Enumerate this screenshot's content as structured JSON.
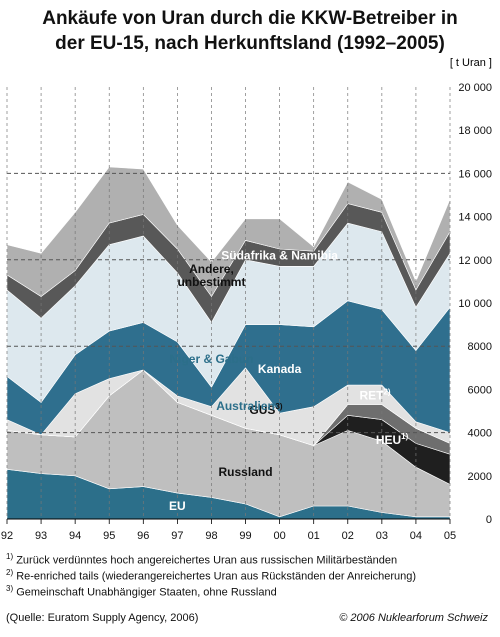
{
  "title_line1": "Ankäufe von Uran durch die KKW-Betreiber in",
  "title_line2": "der EU-15, nach Herkunftsland (1992–2005)",
  "footnotes": [
    "Zurück verdünntes hoch angereichertes Uran aus russischen Militärbeständen",
    "Re-enriched tails (wiederangereichertes Uran aus Rückständen der Anreicherung)",
    "Gemeinschaft Unabhängiger Staaten, ohne Russland"
  ],
  "footnote_marks": [
    "1)",
    "2)",
    "3)"
  ],
  "source": "(Quelle: Euratom Supply Agency, 2006)",
  "copyright": "© 2006 Nuklearforum Schweiz",
  "chart_data": {
    "type": "area",
    "stacked": true,
    "x": [
      "92",
      "93",
      "94",
      "95",
      "96",
      "97",
      "98",
      "99",
      "00",
      "01",
      "02",
      "03",
      "04",
      "05"
    ],
    "unit_label": "[ t Uran ]",
    "ylim": [
      0,
      20000
    ],
    "yticks": [
      "0",
      "2000",
      "4000",
      "6000",
      "8000",
      "10 000",
      "12 000",
      "14 000",
      "16 000",
      "18 000",
      "20 000"
    ],
    "ytick_values": [
      0,
      2000,
      4000,
      6000,
      8000,
      10000,
      12000,
      14000,
      16000,
      18000,
      20000
    ],
    "grid_dashed_at": [
      4000,
      8000,
      12000,
      16000
    ],
    "vertical_grid": "dashed at every year",
    "series": [
      {
        "name": "EU",
        "color": "#2c6f8a",
        "values": [
          2300,
          2100,
          2000,
          1400,
          1500,
          1200,
          1000,
          700,
          100,
          600,
          600,
          300,
          100,
          100
        ]
      },
      {
        "name": "Russland",
        "color": "#bfbfbf",
        "values": [
          1800,
          1800,
          1800,
          4300,
          5400,
          4200,
          3800,
          3500,
          3800,
          2800,
          3500,
          3300,
          2300,
          1500
        ]
      },
      {
        "name": "HEU",
        "note": "1)",
        "color": "#1f1f1f",
        "values": [
          0,
          0,
          0,
          0,
          0,
          0,
          0,
          0,
          0,
          0,
          700,
          1000,
          1100,
          1400
        ]
      },
      {
        "name": "RET",
        "note": "2)",
        "color": "#6e6e6e",
        "values": [
          0,
          0,
          0,
          0,
          0,
          0,
          0,
          0,
          0,
          0,
          500,
          700,
          700,
          500
        ]
      },
      {
        "name": "GUS",
        "note": "3)",
        "color": "#5a5a5a",
        "values": [
          0,
          0,
          0,
          0,
          0,
          0,
          0,
          0,
          0,
          0,
          0,
          0,
          0,
          0
        ]
      },
      {
        "name": "Australien",
        "color": "#e2e2e2",
        "values": [
          500,
          0,
          2000,
          800,
          0,
          300,
          400,
          2800,
          1000,
          1800,
          900,
          900,
          300,
          500
        ]
      },
      {
        "name": "Australien_band",
        "color": "#9dbfcc",
        "values": [
          0,
          0,
          0,
          0,
          0,
          0,
          0,
          0,
          0,
          0,
          0,
          0,
          0,
          0
        ]
      },
      {
        "name": "Kanada",
        "color": "#2f6f8e",
        "values": [
          2000,
          1500,
          1800,
          2200,
          2200,
          2500,
          900,
          2000,
          4100,
          3700,
          3900,
          3500,
          3300,
          5800
        ]
      },
      {
        "name": "Niger & Gabun",
        "color": "#dde8ee",
        "values": [
          4000,
          3900,
          3200,
          4000,
          4000,
          3200,
          3000,
          3000,
          2700,
          2800,
          3600,
          3600,
          2000,
          2500
        ]
      },
      {
        "name": "Südafrika & Namibia",
        "color": "#585858",
        "values": [
          700,
          1000,
          700,
          1000,
          1000,
          1100,
          1200,
          900,
          800,
          700,
          900,
          900,
          800,
          1000
        ]
      },
      {
        "name": "Andere, unbestimmt",
        "color": "#b0b0b0",
        "values": [
          1400,
          2000,
          2700,
          2600,
          2100,
          1100,
          1600,
          1000,
          1400,
          200,
          1000,
          600,
          400,
          1500
        ]
      }
    ],
    "labels": [
      {
        "text": "EU",
        "series": "EU"
      },
      {
        "text": "Russland",
        "series": "Russland"
      },
      {
        "text": "HEU",
        "sup": "1)",
        "series": "HEU"
      },
      {
        "text": "RET",
        "sup": "2)",
        "series": "RET"
      },
      {
        "text": "GUS",
        "sup": "3)",
        "series": "GUS"
      },
      {
        "text": "Australien",
        "series": "Australien"
      },
      {
        "text": "Kanada",
        "series": "Kanada"
      },
      {
        "text": "Niger & Gabun",
        "series": "Niger & Gabun"
      },
      {
        "text": "Südafrika & Namibia",
        "series": "Südafrika & Namibia"
      },
      {
        "text": "Andere,",
        "series": "Andere, unbestimmt"
      },
      {
        "text": "unbestimmt",
        "series": "Andere, unbestimmt"
      }
    ]
  }
}
